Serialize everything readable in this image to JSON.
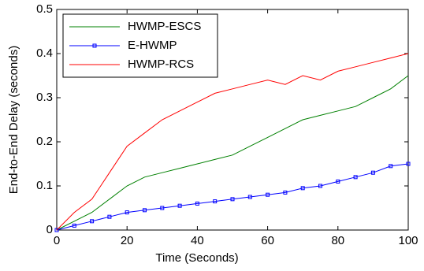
{
  "chart_data": {
    "type": "line",
    "xlabel": "Time (Seconds)",
    "ylabel": "End-to-End Delay (seconds)",
    "x": [
      0,
      5,
      10,
      15,
      20,
      25,
      30,
      35,
      40,
      45,
      50,
      55,
      60,
      65,
      70,
      75,
      80,
      85,
      90,
      95,
      100
    ],
    "series": [
      {
        "name": "HWMP-ESCS",
        "color": "#008000",
        "marker": false,
        "values": [
          0,
          0.02,
          0.04,
          0.07,
          0.1,
          0.12,
          0.13,
          0.14,
          0.15,
          0.16,
          0.17,
          0.19,
          0.21,
          0.23,
          0.25,
          0.26,
          0.27,
          0.28,
          0.3,
          0.32,
          0.35
        ]
      },
      {
        "name": "E-HWMP",
        "color": "#0000ff",
        "marker": true,
        "values": [
          0,
          0.01,
          0.02,
          0.03,
          0.04,
          0.045,
          0.05,
          0.055,
          0.06,
          0.065,
          0.07,
          0.075,
          0.08,
          0.085,
          0.095,
          0.1,
          0.11,
          0.12,
          0.13,
          0.145,
          0.15
        ]
      },
      {
        "name": "HWMP-RCS",
        "color": "#ff0000",
        "marker": false,
        "values": [
          0,
          0.04,
          0.07,
          0.13,
          0.19,
          0.22,
          0.25,
          0.27,
          0.29,
          0.31,
          0.32,
          0.33,
          0.34,
          0.33,
          0.35,
          0.34,
          0.36,
          0.37,
          0.38,
          0.39,
          0.4
        ]
      }
    ],
    "xlim": [
      0,
      100
    ],
    "xticks": [
      0,
      20,
      40,
      60,
      80,
      100
    ],
    "ylim": [
      0,
      0.5
    ],
    "yticks": [
      0,
      0.1,
      0.2,
      0.3,
      0.4,
      0.5
    ],
    "grid": false,
    "legend": "upper left"
  }
}
